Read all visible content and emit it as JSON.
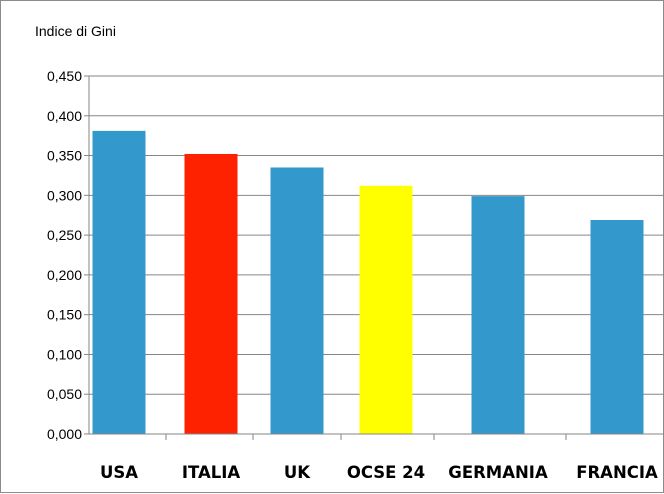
{
  "chart_data": {
    "type": "bar",
    "ylabel": "Indice di Gini",
    "categories": [
      "USA",
      "ITALIA",
      "UK",
      "OCSE 24",
      "GERMANIA",
      "FRANCIA"
    ],
    "values": [
      0.381,
      0.352,
      0.335,
      0.312,
      0.299,
      0.269
    ],
    "bar_colors": [
      "#3399CC",
      "#FF2200",
      "#3399CC",
      "#FFFF00",
      "#3399CC",
      "#3399CC"
    ],
    "ylim": [
      0,
      0.45
    ],
    "yticks": [
      "0,000",
      "0,050",
      "0,100",
      "0,150",
      "0,200",
      "0,250",
      "0,300",
      "0,350",
      "0,400",
      "0,450"
    ],
    "grid": true,
    "gridline_color": "#868686"
  }
}
